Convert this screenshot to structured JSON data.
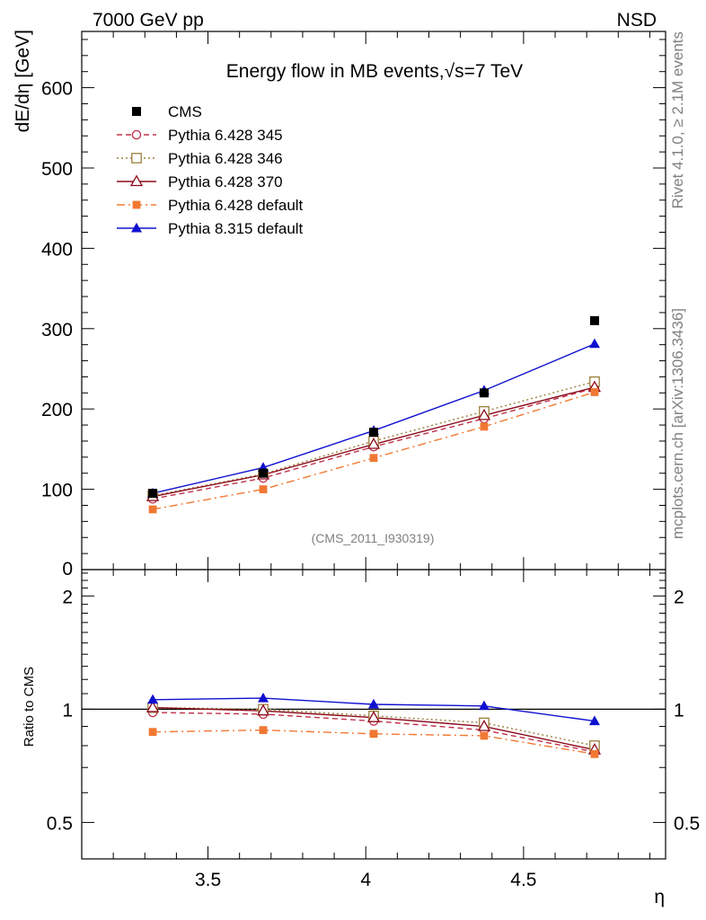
{
  "header": {
    "left": "7000 GeV pp",
    "right": "NSD"
  },
  "side": {
    "rivet": "Rivet 4.1.0, ≥ 2.1M events",
    "mcplots": "mcplots.cern.ch [arXiv:1306.3436]"
  },
  "chart_data": {
    "type": "line",
    "title": "Energy flow in MB events,√s=7 TeV",
    "analysis_id": "(CMS_2011_I930319)",
    "xlabel": "η",
    "ylabel": "dE/dη [GeV]",
    "ratio_ylabel": "Ratio to CMS",
    "xlim": [
      3.1,
      4.95
    ],
    "ylim": [
      0,
      670
    ],
    "ratio_ylim": [
      0.4,
      2.35
    ],
    "x_ticks": [
      "3.5",
      "4",
      "4.5"
    ],
    "y_ticks": [
      "100",
      "200",
      "300",
      "400",
      "500",
      "600"
    ],
    "y_zero_tick": "0",
    "ratio_ticks": [
      "0.5",
      "1",
      "2"
    ],
    "x": [
      3.325,
      3.675,
      4.025,
      4.375,
      4.725
    ],
    "data_series": {
      "name": "CMS",
      "values": [
        95,
        120,
        171,
        220,
        310
      ]
    },
    "series": [
      {
        "name": "Pythia 6.428 345",
        "color": "#c0304a",
        "style": "dashed",
        "marker": "open-circle",
        "values": [
          88,
          114,
          153,
          188,
          226
        ],
        "ratio": [
          0.98,
          0.97,
          0.93,
          0.88,
          0.77
        ]
      },
      {
        "name": "Pythia 6.428 346",
        "color": "#9a7f3a",
        "style": "dotted",
        "marker": "open-square",
        "values": [
          92,
          119,
          160,
          197,
          234
        ],
        "ratio": [
          1.01,
          1.0,
          0.96,
          0.92,
          0.8
        ]
      },
      {
        "name": "Pythia 6.428 370",
        "color": "#8b0a1a",
        "style": "solid",
        "marker": "open-triangle",
        "values": [
          91,
          118,
          156,
          192,
          227
        ],
        "ratio": [
          1.01,
          0.99,
          0.95,
          0.9,
          0.78
        ]
      },
      {
        "name": "Pythia 6.428 default",
        "color": "#f07832",
        "style": "dashdot",
        "marker": "filled-square",
        "values": [
          75,
          100,
          139,
          178,
          221
        ],
        "ratio": [
          0.87,
          0.88,
          0.86,
          0.85,
          0.76
        ]
      },
      {
        "name": "Pythia 8.315 default",
        "color": "#1010d0",
        "style": "solid",
        "marker": "filled-triangle",
        "values": [
          95,
          127,
          173,
          223,
          281
        ],
        "ratio": [
          1.06,
          1.07,
          1.03,
          1.02,
          0.93
        ]
      }
    ]
  }
}
